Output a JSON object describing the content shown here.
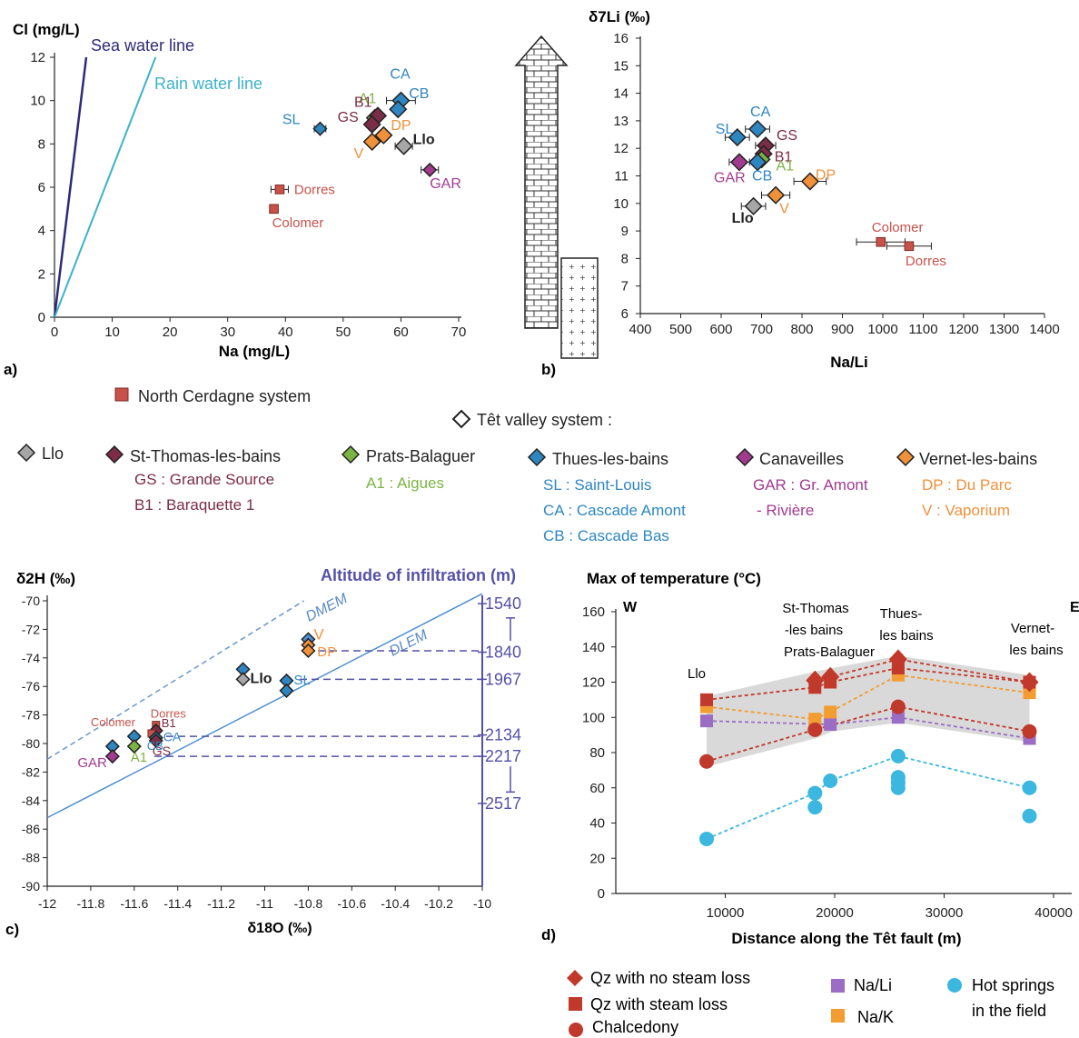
{
  "colors": {
    "north_cerdagne": "#c8524a",
    "llo": "#a6a6a6",
    "st_thomas": "#7b2c46",
    "prats": "#7cb342",
    "thues": "#2e86c1",
    "canaveilles": "#a23b8f",
    "vernet": "#f0913a",
    "sea_line": "#2e2a7a",
    "rain_line": "#3bb3c9",
    "altitude": "#5451a8",
    "qz": "#c0392b",
    "chalcedony": "#c0392b",
    "nali": "#9b6dc4",
    "nak": "#f39c32",
    "hot_springs": "#3bb7e0",
    "band": "#d9d9d9"
  },
  "panel_labels": {
    "a": "a)",
    "b": "b)",
    "c": "c)",
    "d": "d)"
  },
  "legend": {
    "north_cerdagne": "North Cerdagne system",
    "tet_valley": "Têt valley system :",
    "llo": "Llo",
    "st_thomas": "St-Thomas-les-bains",
    "st_thomas_sub1": "GS : Grande Source",
    "st_thomas_sub2": "B1 : Baraquette 1",
    "prats": "Prats-Balaguer",
    "prats_sub1": "A1 : Aigues",
    "thues": "Thues-les-bains",
    "thues_sub1": "SL : Saint-Louis",
    "thues_sub2": "CA : Cascade Amont",
    "thues_sub3": "CB : Cascade Bas",
    "canaveilles": "Canaveilles",
    "canaveilles_sub1": "GAR : Gr. Amont",
    "canaveilles_sub2": "- Rivière",
    "vernet": "Vernet-les-bains",
    "vernet_sub1": "DP : Du Parc",
    "vernet_sub2": "V : Vaporium"
  },
  "legend_d": {
    "qz_no_loss": "Qz with no steam loss",
    "qz_loss": "Qz with steam loss",
    "chalcedony": "Chalcedony",
    "nali": "Na/Li",
    "nak": "Na/K",
    "hot_springs_1": "Hot springs",
    "hot_springs_2": "in the field"
  },
  "chart_data": [
    {
      "id": "a",
      "type": "scatter",
      "xlabel": "Na (mg/L)",
      "ylabel": "Cl (mg/L)",
      "xlim": [
        0,
        70
      ],
      "ylim": [
        0,
        12
      ],
      "xticks": [
        "0",
        "10",
        "20",
        "30",
        "40",
        "50",
        "60",
        "70"
      ],
      "yticks": [
        "0",
        "2",
        "4",
        "6",
        "8",
        "10",
        "12"
      ],
      "lines": [
        {
          "name": "Sea water line",
          "x": [
            0,
            5.5
          ],
          "y": [
            0,
            12
          ]
        },
        {
          "name": "Rain water line",
          "x": [
            0,
            17.5
          ],
          "y": [
            0,
            12
          ]
        }
      ],
      "points": [
        {
          "label": "SL",
          "group": "thues",
          "shape": "diamond",
          "x": 46,
          "y": 8.7,
          "xerr": 1
        },
        {
          "label": "CA",
          "group": "thues",
          "shape": "diamond",
          "x": 60,
          "y": 10,
          "xerr": 2.5
        },
        {
          "label": "CB",
          "group": "thues",
          "shape": "diamond",
          "x": 59.5,
          "y": 9.6
        },
        {
          "label": "A1",
          "group": "prats",
          "shape": "diamond",
          "x": 55.5,
          "y": 9.2
        },
        {
          "label": "B1",
          "group": "st_thomas",
          "shape": "diamond",
          "x": 56,
          "y": 9.3
        },
        {
          "label": "GS",
          "group": "st_thomas",
          "shape": "diamond",
          "x": 55,
          "y": 8.9
        },
        {
          "label": "DP",
          "group": "vernet",
          "shape": "diamond",
          "x": 57,
          "y": 8.4
        },
        {
          "label": "V",
          "group": "vernet",
          "shape": "diamond",
          "x": 55,
          "y": 8.1
        },
        {
          "label": "Llo",
          "group": "llo",
          "shape": "diamond",
          "x": 60.5,
          "y": 7.9,
          "xerr": 1.5
        },
        {
          "label": "GAR",
          "group": "canaveilles",
          "shape": "diamond",
          "x": 65,
          "y": 6.8,
          "xerr": 1.5
        },
        {
          "label": "Dorres",
          "group": "north_cerdagne",
          "shape": "square",
          "x": 39,
          "y": 5.9,
          "xerr": 1.5
        },
        {
          "label": "Colomer",
          "group": "north_cerdagne",
          "shape": "square",
          "x": 38,
          "y": 5.0
        }
      ]
    },
    {
      "id": "b",
      "type": "scatter",
      "xlabel": "Na/Li",
      "ylabel": "δ7Li (‰)",
      "xlim": [
        400,
        1400
      ],
      "ylim": [
        6,
        16
      ],
      "xticks": [
        "400",
        "500",
        "600",
        "700",
        "800",
        "900",
        "1000",
        "1100",
        "1200",
        "1300",
        "1400"
      ],
      "yticks": [
        "6",
        "7",
        "8",
        "9",
        "10",
        "11",
        "12",
        "13",
        "14",
        "15",
        "16"
      ],
      "points": [
        {
          "label": "SL",
          "group": "thues",
          "shape": "diamond",
          "x": 640,
          "y": 12.4,
          "xerr": 30
        },
        {
          "label": "CA",
          "group": "thues",
          "shape": "diamond",
          "x": 690,
          "y": 12.7,
          "xerr": 30
        },
        {
          "label": "GS",
          "group": "st_thomas",
          "shape": "diamond",
          "x": 710,
          "y": 12.1,
          "xerr": 25
        },
        {
          "label": "B1",
          "group": "st_thomas",
          "shape": "diamond",
          "x": 705,
          "y": 11.8
        },
        {
          "label": "A1",
          "group": "prats",
          "shape": "diamond",
          "x": 700,
          "y": 11.6
        },
        {
          "label": "CB",
          "group": "thues",
          "shape": "diamond",
          "x": 690,
          "y": 11.5
        },
        {
          "label": "GAR",
          "group": "canaveilles",
          "shape": "diamond",
          "x": 645,
          "y": 11.5,
          "xerr": 25
        },
        {
          "label": "DP",
          "group": "vernet",
          "shape": "diamond",
          "x": 820,
          "y": 10.8,
          "xerr": 40
        },
        {
          "label": "V",
          "group": "vernet",
          "shape": "diamond",
          "x": 735,
          "y": 10.3,
          "xerr": 35
        },
        {
          "label": "Llo",
          "group": "llo",
          "shape": "diamond",
          "x": 680,
          "y": 9.9,
          "xerr": 30
        },
        {
          "label": "Colomer",
          "group": "north_cerdagne",
          "shape": "square",
          "x": 995,
          "y": 8.6,
          "xerr": 60
        },
        {
          "label": "Dorres",
          "group": "north_cerdagne",
          "shape": "square",
          "x": 1065,
          "y": 8.45,
          "xerr": 55
        }
      ]
    },
    {
      "id": "c",
      "type": "scatter",
      "xlabel": "δ18O (‰)",
      "ylabel": "δ2H (‰)",
      "y2label": "Altitude of infiltration (m)",
      "xlim": [
        -12,
        -10
      ],
      "ylim": [
        -90,
        -70
      ],
      "xticks": [
        "-12",
        "-11.8",
        "-11.6",
        "-11.4",
        "-11.2",
        "-11",
        "-10.8",
        "-10.6",
        "-10.4",
        "-10.2",
        "-10"
      ],
      "yticks": [
        "-70",
        "-72",
        "-74",
        "-76",
        "-78",
        "-80",
        "-82",
        "-84",
        "-86",
        "-88",
        "-90"
      ],
      "lines": [
        {
          "name": "DMEM",
          "x": [
            -12,
            -10.82
          ],
          "y": [
            -81.1,
            -70
          ],
          "dashed": true
        },
        {
          "name": "DLEM",
          "x": [
            -12,
            -10
          ],
          "y": [
            -85.2,
            -69.5
          ],
          "dashed": false
        }
      ],
      "altitudes": [
        {
          "label": "1540",
          "y": -70.2
        },
        {
          "label": "1840",
          "y": -73.6
        },
        {
          "label": "1967",
          "y": -75.5
        },
        {
          "label": "2134",
          "y": -79.4
        },
        {
          "label": "2217",
          "y": -80.9
        },
        {
          "label": "2517",
          "y": -84.2
        }
      ],
      "guide_levels": [
        -73.5,
        -75.5,
        -79.5,
        -80.9
      ],
      "points": [
        {
          "label": "V",
          "group": "vernet",
          "shape": "diamond",
          "x": -10.8,
          "y": -72.7,
          "color": "thues"
        },
        {
          "label": "",
          "group": "vernet",
          "shape": "diamond",
          "x": -10.8,
          "y": -73.1
        },
        {
          "label": "DP",
          "group": "vernet",
          "shape": "diamond",
          "x": -10.8,
          "y": -73.5
        },
        {
          "label": "",
          "group": "thues",
          "shape": "diamond",
          "x": -11.1,
          "y": -74.8
        },
        {
          "label": "Llo",
          "group": "llo",
          "shape": "diamond",
          "x": -11.1,
          "y": -75.5
        },
        {
          "label": "SL",
          "group": "thues",
          "shape": "diamond",
          "x": -10.9,
          "y": -75.6
        },
        {
          "label": "",
          "group": "thues",
          "shape": "diamond",
          "x": -10.9,
          "y": -76.3
        },
        {
          "label": "Dorres",
          "group": "north_cerdagne",
          "shape": "square",
          "x": -11.5,
          "y": -78.7
        },
        {
          "label": "B1",
          "group": "st_thomas",
          "shape": "diamond",
          "x": -11.5,
          "y": -79.1
        },
        {
          "label": "Colomer",
          "group": "north_cerdagne",
          "shape": "square",
          "x": -11.52,
          "y": -79.3
        },
        {
          "label": "CA",
          "group": "thues",
          "shape": "diamond",
          "x": -11.5,
          "y": -79.6
        },
        {
          "label": "GS",
          "group": "st_thomas",
          "shape": "diamond",
          "x": -11.5,
          "y": -79.8
        },
        {
          "label": "CB",
          "group": "thues",
          "shape": "diamond",
          "x": -11.6,
          "y": -79.5
        },
        {
          "label": "A1",
          "group": "prats",
          "shape": "diamond",
          "x": -11.6,
          "y": -80.2
        },
        {
          "label": "",
          "group": "thues",
          "shape": "diamond",
          "x": -11.7,
          "y": -80.2
        },
        {
          "label": "GAR",
          "group": "canaveilles",
          "shape": "diamond",
          "x": -11.7,
          "y": -80.9
        }
      ]
    },
    {
      "id": "d",
      "type": "scatter",
      "title": "Max of temperature (°C)",
      "xlabel": "Distance along the Têt fault (m)",
      "xlim": [
        0,
        40000
      ],
      "ylim": [
        0,
        160
      ],
      "xticks": [
        "10000",
        "20000",
        "30000",
        "40000"
      ],
      "yticks": [
        "0",
        "20",
        "40",
        "60",
        "80",
        "100",
        "120",
        "140",
        "160"
      ],
      "annotations": {
        "west": "W",
        "east": "E",
        "llo": "Llo",
        "stthomas_1": "St-Thomas",
        "stthomas_2": "-les bains",
        "prats": "Prats-Balaguer",
        "thues_1": "Thues-",
        "thues_2": "les bains",
        "vernet_1": "Vernet-",
        "vernet_2": "les bains"
      },
      "band": {
        "x": [
          8300,
          18200,
          19800,
          25800,
          37800
        ],
        "upper": [
          112,
          126,
          128,
          135,
          124
        ],
        "lower": [
          72,
          88,
          92,
          97,
          86
        ]
      },
      "series": [
        {
          "name": "Qz with no steam loss",
          "shape": "diamond",
          "x": [
            18200,
            19600,
            25800,
            37800
          ],
          "y": [
            121,
            123,
            133,
            120
          ],
          "connect": true
        },
        {
          "name": "Qz with steam loss",
          "shape": "square",
          "x": [
            8300,
            18200,
            19600,
            25800,
            37800
          ],
          "y": [
            110,
            117,
            120,
            128,
            120
          ],
          "connect": true
        },
        {
          "name": "Na/K",
          "shape": "square",
          "x": [
            8300,
            18200,
            19600,
            25800,
            37800
          ],
          "y": [
            106,
            99,
            103,
            124,
            114
          ],
          "connect": true
        },
        {
          "name": "Na/Li",
          "shape": "square",
          "x": [
            8300,
            19600,
            25800,
            37800
          ],
          "y": [
            98,
            96,
            100,
            88
          ],
          "connect": true
        },
        {
          "name": "Chalcedony",
          "shape": "circle",
          "x": [
            8300,
            18200,
            25800,
            37800
          ],
          "y": [
            75,
            93,
            106,
            92
          ],
          "connect": true
        },
        {
          "name": "Hot springs in the field",
          "shape": "circle",
          "x": [
            8300,
            18200,
            19600,
            25800,
            37800
          ],
          "y": [
            31,
            57,
            64,
            78,
            60
          ],
          "connect": true
        },
        {
          "name": "Hot springs in the field",
          "shape": "circle",
          "x": [
            18200,
            25800,
            25800,
            25800,
            37800
          ],
          "y": [
            49,
            66,
            63,
            60,
            44
          ],
          "connect": false
        }
      ]
    }
  ]
}
